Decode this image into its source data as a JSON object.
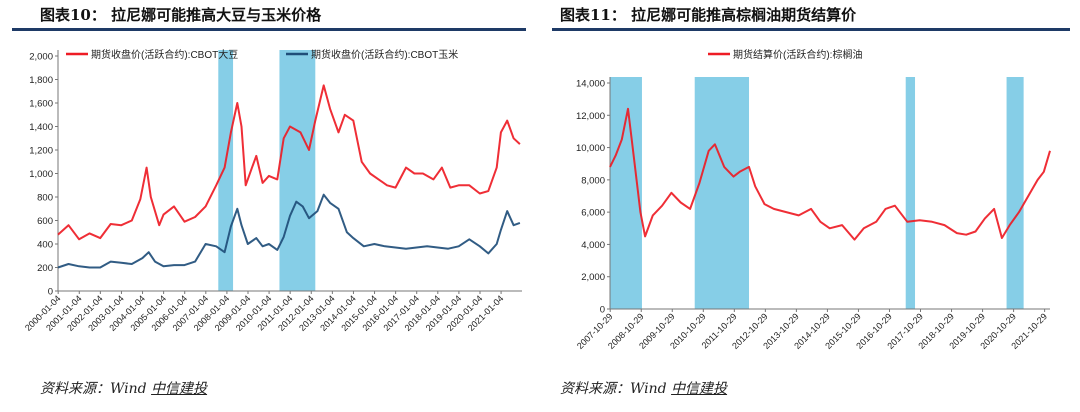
{
  "panels": [
    {
      "title": "图表10： 拉尼娜可能推高大豆与玉米价格",
      "source_prefix": "资料来源：Wind  ",
      "source_org": "中信建投"
    },
    {
      "title": "图表11： 拉尼娜可能推高棕榈油期货结算价",
      "source_prefix": "资料来源：Wind  ",
      "source_org": "中信建投"
    }
  ],
  "colors": {
    "red": "#ee1c25",
    "blue": "#1f4e79",
    "shade": "#7fcbe6",
    "rule": "#1e3a66"
  },
  "chart_data": [
    {
      "type": "line",
      "ylim": [
        0,
        2000
      ],
      "yticks": [
        "0",
        "200",
        "400",
        "600",
        "800",
        "1,000",
        "1,200",
        "1,400",
        "1,600",
        "1,800",
        "2,000"
      ],
      "xlim": [
        2000.0,
        2022.0
      ],
      "xticks": [
        "2000-01-04",
        "2001-01-04",
        "2002-01-04",
        "2003-01-04",
        "2004-01-04",
        "2005-01-04",
        "2006-01-04",
        "2007-01-04",
        "2008-01-04",
        "2009-01-04",
        "2010-01-04",
        "2011-01-04",
        "2012-01-04",
        "2013-01-04",
        "2014-01-04",
        "2015-01-04",
        "2016-01-04",
        "2017-01-04",
        "2018-01-04",
        "2019-01-04",
        "2020-01-04",
        "2021-01-04"
      ],
      "legend_position": "top",
      "shaded_periods": [
        [
          2007.6,
          2008.3
        ],
        [
          2010.5,
          2012.2
        ]
      ],
      "series": [
        {
          "name": "期货收盘价(活跃合约):CBOT大豆",
          "color": "red",
          "x": [
            2000.0,
            2000.5,
            2001.0,
            2001.5,
            2002.0,
            2002.5,
            2003.0,
            2003.5,
            2003.9,
            2004.2,
            2004.4,
            2004.8,
            2005.0,
            2005.5,
            2006.0,
            2006.5,
            2007.0,
            2007.5,
            2007.9,
            2008.2,
            2008.5,
            2008.7,
            2008.9,
            2009.2,
            2009.4,
            2009.7,
            2010.0,
            2010.4,
            2010.7,
            2011.0,
            2011.5,
            2011.9,
            2012.2,
            2012.6,
            2012.9,
            2013.3,
            2013.6,
            2014.0,
            2014.4,
            2014.8,
            2015.2,
            2015.6,
            2016.0,
            2016.5,
            2016.9,
            2017.3,
            2017.8,
            2018.2,
            2018.6,
            2019.0,
            2019.5,
            2020.0,
            2020.4,
            2020.8,
            2021.0,
            2021.3,
            2021.6,
            2021.9
          ],
          "y": [
            480,
            560,
            440,
            490,
            450,
            570,
            560,
            600,
            780,
            1050,
            800,
            560,
            650,
            720,
            590,
            630,
            720,
            900,
            1050,
            1350,
            1600,
            1400,
            900,
            1050,
            1150,
            920,
            980,
            950,
            1300,
            1400,
            1350,
            1200,
            1450,
            1750,
            1550,
            1350,
            1500,
            1450,
            1100,
            1000,
            950,
            900,
            880,
            1050,
            1000,
            1000,
            950,
            1050,
            880,
            900,
            900,
            830,
            850,
            1050,
            1350,
            1450,
            1300,
            1250
          ]
        },
        {
          "name": "期货收盘价(活跃合约):CBOT玉米",
          "color": "blue",
          "x": [
            2000.0,
            2000.5,
            2001.0,
            2001.5,
            2002.0,
            2002.5,
            2003.0,
            2003.5,
            2004.0,
            2004.3,
            2004.6,
            2005.0,
            2005.5,
            2006.0,
            2006.5,
            2007.0,
            2007.5,
            2007.9,
            2008.2,
            2008.5,
            2008.7,
            2009.0,
            2009.4,
            2009.7,
            2010.0,
            2010.4,
            2010.7,
            2011.0,
            2011.3,
            2011.6,
            2011.9,
            2012.3,
            2012.6,
            2012.9,
            2013.3,
            2013.7,
            2014.0,
            2014.5,
            2015.0,
            2015.5,
            2016.0,
            2016.5,
            2017.0,
            2017.5,
            2018.0,
            2018.5,
            2019.0,
            2019.5,
            2020.0,
            2020.4,
            2020.8,
            2021.0,
            2021.3,
            2021.6,
            2021.9
          ],
          "y": [
            200,
            230,
            210,
            200,
            200,
            250,
            240,
            230,
            280,
            330,
            250,
            210,
            220,
            220,
            250,
            400,
            380,
            330,
            550,
            700,
            560,
            400,
            450,
            380,
            400,
            350,
            460,
            640,
            760,
            720,
            620,
            680,
            820,
            750,
            700,
            500,
            450,
            380,
            400,
            380,
            370,
            360,
            370,
            380,
            370,
            360,
            380,
            440,
            380,
            320,
            400,
            520,
            680,
            560,
            580
          ]
        }
      ]
    },
    {
      "type": "line",
      "ylim": [
        0,
        14000
      ],
      "yticks": [
        "0",
        "2,000",
        "4,000",
        "6,000",
        "8,000",
        "10,000",
        "12,000",
        "14,000"
      ],
      "xlim": [
        2007.82,
        2022.0
      ],
      "xticks": [
        "2007-10-29",
        "2008-10-29",
        "2009-10-29",
        "2010-10-29",
        "2011-10-29",
        "2012-10-29",
        "2013-10-29",
        "2014-10-29",
        "2015-10-29",
        "2016-10-29",
        "2017-10-29",
        "2018-10-29",
        "2019-10-29",
        "2020-10-29",
        "2021-10-29"
      ],
      "legend_position": "top",
      "shaded_periods": [
        [
          2007.82,
          2008.85
        ],
        [
          2010.55,
          2012.3
        ],
        [
          2017.35,
          2017.65
        ],
        [
          2020.6,
          2021.15
        ]
      ],
      "series": [
        {
          "name": "期货结算价(活跃合约):棕榈油",
          "color": "red",
          "x": [
            2007.82,
            2008.0,
            2008.2,
            2008.4,
            2008.55,
            2008.8,
            2008.95,
            2009.2,
            2009.5,
            2009.8,
            2010.1,
            2010.4,
            2010.7,
            2011.0,
            2011.2,
            2011.5,
            2011.8,
            2012.0,
            2012.3,
            2012.5,
            2012.8,
            2013.1,
            2013.5,
            2013.9,
            2014.3,
            2014.6,
            2014.9,
            2015.3,
            2015.7,
            2016.0,
            2016.4,
            2016.7,
            2017.0,
            2017.4,
            2017.8,
            2018.2,
            2018.6,
            2019.0,
            2019.3,
            2019.6,
            2019.9,
            2020.2,
            2020.45,
            2020.7,
            2021.0,
            2021.3,
            2021.6,
            2021.8,
            2022.0
          ],
          "y": [
            8800,
            9500,
            10500,
            12400,
            10000,
            6000,
            4500,
            5800,
            6400,
            7200,
            6600,
            6200,
            7800,
            9800,
            10200,
            8800,
            8200,
            8500,
            8800,
            7600,
            6500,
            6200,
            6000,
            5800,
            6200,
            5400,
            5000,
            5200,
            4300,
            5000,
            5400,
            6200,
            6400,
            5400,
            5500,
            5400,
            5200,
            4700,
            4600,
            4800,
            5600,
            6200,
            4400,
            5200,
            6000,
            7000,
            8000,
            8500,
            9800
          ]
        }
      ]
    }
  ]
}
